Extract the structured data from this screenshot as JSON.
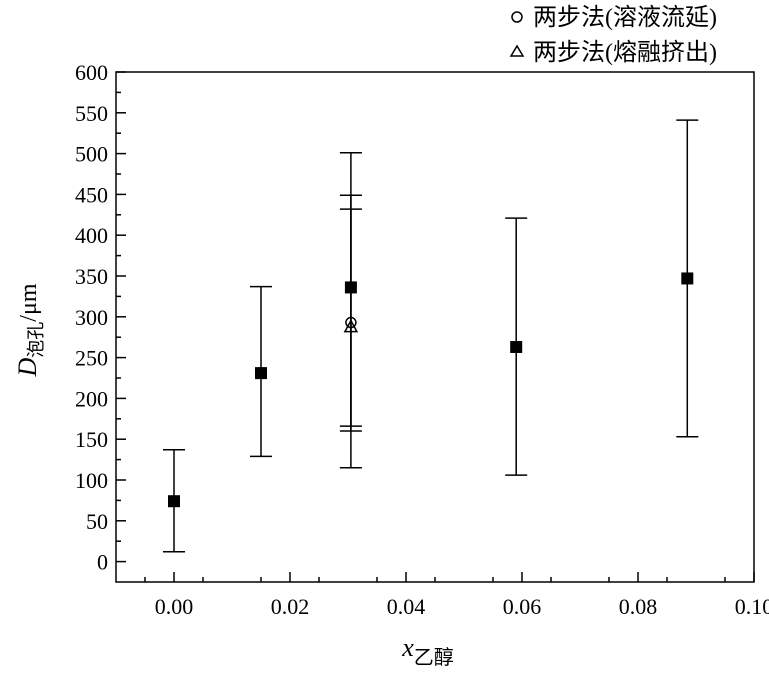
{
  "chart_data": {
    "type": "scatter",
    "xlim": [
      -0.01,
      0.1
    ],
    "ylim": [
      -25,
      600
    ],
    "x_ticks": [
      "0.00",
      "0.02",
      "0.04",
      "0.06",
      "0.08",
      "0.10"
    ],
    "x_tick_values": [
      0.0,
      0.02,
      0.04,
      0.06,
      0.08,
      0.1
    ],
    "y_ticks": [
      "0",
      "50",
      "100",
      "150",
      "200",
      "250",
      "300",
      "350",
      "400",
      "450",
      "500",
      "550",
      "600"
    ],
    "y_tick_values": [
      0,
      50,
      100,
      150,
      200,
      250,
      300,
      350,
      400,
      450,
      500,
      550,
      600
    ],
    "xlabel": {
      "main": "x",
      "sub": "乙醇"
    },
    "ylabel": {
      "main": "D",
      "sub": "泡孔",
      "unit": "/μm"
    },
    "legend_position": "top-right",
    "grid": false,
    "series": [
      {
        "marker": "filled-square",
        "points": [
          {
            "x": 0.0,
            "y": 74,
            "ymin": 12,
            "ymax": 137
          },
          {
            "x": 0.015,
            "y": 231,
            "ymin": 129,
            "ymax": 337
          },
          {
            "x": 0.0305,
            "y": 336,
            "ymin": 115,
            "ymax": 501
          },
          {
            "x": 0.059,
            "y": 263,
            "ymin": 106,
            "ymax": 421
          },
          {
            "x": 0.0885,
            "y": 347,
            "ymin": 153,
            "ymax": 541
          }
        ]
      },
      {
        "name": "两步法(溶液流延)",
        "marker": "open-circle",
        "points": [
          {
            "x": 0.0305,
            "y": 293,
            "ymin": 166,
            "ymax": 432
          }
        ]
      },
      {
        "name": "两步法(熔融挤出)",
        "marker": "open-triangle",
        "points": [
          {
            "x": 0.0305,
            "y": 288,
            "ymin": 160,
            "ymax": 449
          }
        ]
      }
    ]
  }
}
